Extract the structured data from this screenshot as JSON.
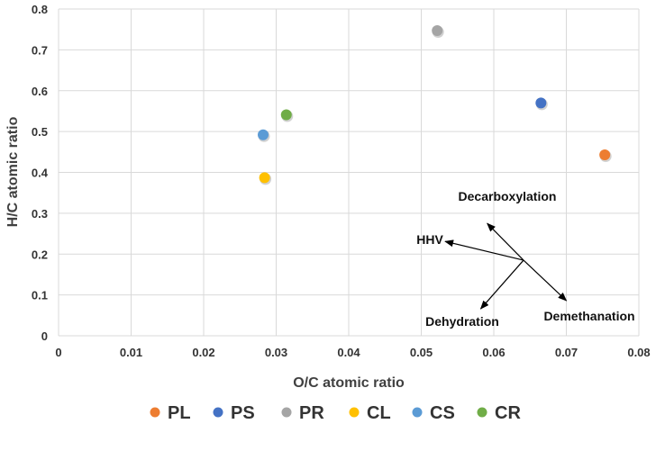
{
  "chart_data": {
    "type": "scatter",
    "title": "",
    "xlabel": "O/C atomic ratio",
    "ylabel": "H/C atomic ratio",
    "xlim": [
      0,
      0.08
    ],
    "ylim": [
      0,
      0.8
    ],
    "xticks": [
      "0",
      "0.01",
      "0.02",
      "0.03",
      "0.04",
      "0.05",
      "0.06",
      "0.07",
      "0.08"
    ],
    "yticks": [
      "0",
      "0.1",
      "0.2",
      "0.3",
      "0.4",
      "0.5",
      "0.6",
      "0.7",
      "0.8"
    ],
    "grid": true,
    "legend_position": "bottom",
    "series": [
      {
        "name": "PL",
        "color": "#ED7D31",
        "points": [
          [
            0.0753,
            0.443
          ]
        ]
      },
      {
        "name": "PS",
        "color": "#4472C4",
        "points": [
          [
            0.0665,
            0.57
          ]
        ]
      },
      {
        "name": "PR",
        "color": "#A5A5A5",
        "points": [
          [
            0.0522,
            0.747
          ]
        ]
      },
      {
        "name": "CL",
        "color": "#FFC000",
        "points": [
          [
            0.0284,
            0.387
          ]
        ]
      },
      {
        "name": "CS",
        "color": "#5B9BD5",
        "points": [
          [
            0.0282,
            0.492
          ]
        ]
      },
      {
        "name": "CR",
        "color": "#70AD47",
        "points": [
          [
            0.0314,
            0.541
          ]
        ]
      }
    ],
    "annotations": {
      "origin": [
        0.0641,
        0.185
      ],
      "arrows": [
        {
          "label": "Decarboxylation",
          "to": [
            0.0591,
            0.275
          ]
        },
        {
          "label": "HHV",
          "to": [
            0.0533,
            0.231
          ]
        },
        {
          "label": "Dehydration",
          "to": [
            0.0582,
            0.066
          ]
        },
        {
          "label": "Demethanation",
          "to": [
            0.07,
            0.086
          ]
        }
      ]
    }
  }
}
